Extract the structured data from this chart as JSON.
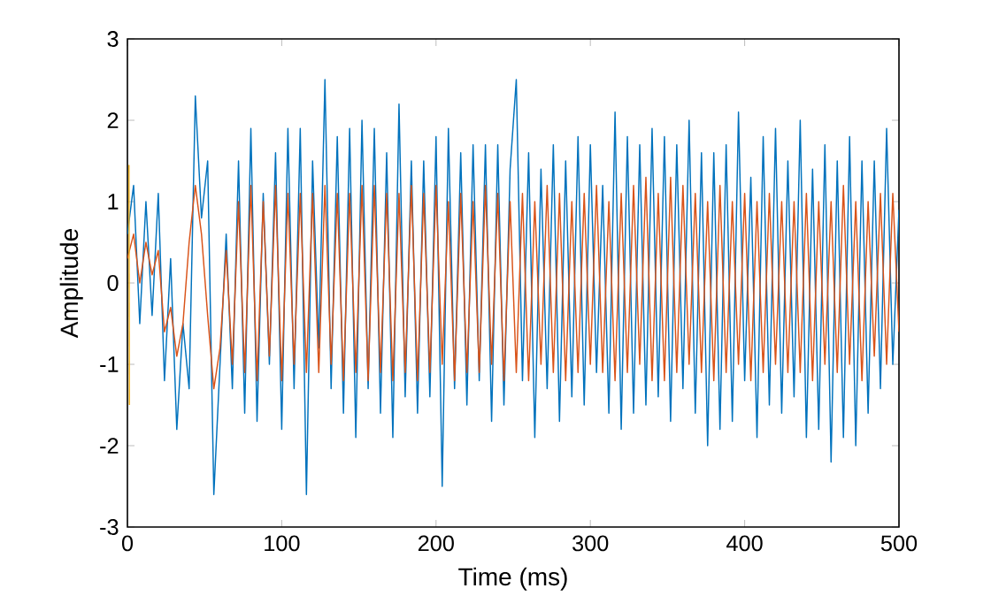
{
  "chart_data": {
    "type": "line",
    "xlabel": "Time (ms)",
    "ylabel": "Amplitude",
    "x": [
      0,
      4,
      8,
      12,
      16,
      20,
      24,
      28,
      32,
      36,
      40,
      44,
      48,
      52,
      56,
      60,
      64,
      68,
      72,
      76,
      80,
      84,
      88,
      92,
      96,
      100,
      104,
      108,
      112,
      116,
      120,
      124,
      128,
      132,
      136,
      140,
      144,
      148,
      152,
      156,
      160,
      164,
      168,
      172,
      176,
      180,
      184,
      188,
      192,
      196,
      200,
      204,
      208,
      212,
      216,
      220,
      224,
      228,
      232,
      236,
      240,
      244,
      248,
      252,
      256,
      260,
      264,
      268,
      272,
      276,
      280,
      284,
      288,
      292,
      296,
      300,
      304,
      308,
      312,
      316,
      320,
      324,
      328,
      332,
      336,
      340,
      344,
      348,
      352,
      356,
      360,
      364,
      368,
      372,
      376,
      380,
      384,
      388,
      392,
      396,
      400,
      404,
      408,
      412,
      416,
      420,
      424,
      428,
      432,
      436,
      440,
      444,
      448,
      452,
      456,
      460,
      464,
      468,
      472,
      476,
      480,
      484,
      488,
      492,
      496,
      500
    ],
    "xlim": [
      0,
      500
    ],
    "xticks": [
      0,
      100,
      200,
      300,
      400,
      500
    ],
    "ylim": [
      -3,
      3
    ],
    "yticks": [
      -3,
      -2,
      -1,
      0,
      1,
      2,
      3
    ],
    "series": [
      {
        "color": "#0072bd",
        "values": [
          0.6,
          1.2,
          -0.5,
          1.0,
          -0.4,
          1.1,
          -1.2,
          0.3,
          -1.8,
          -0.5,
          -1.3,
          2.3,
          0.8,
          1.5,
          -2.6,
          -1.0,
          0.6,
          -1.3,
          1.5,
          -1.6,
          1.9,
          -1.7,
          1.1,
          -1.0,
          1.6,
          -1.8,
          1.9,
          -1.3,
          1.9,
          -2.6,
          1.5,
          -0.8,
          2.5,
          -1.3,
          1.8,
          -1.6,
          1.9,
          -1.9,
          2.0,
          -1.3,
          1.9,
          -1.6,
          1.6,
          -1.9,
          2.2,
          -1.4,
          1.5,
          -1.6,
          1.5,
          -1.4,
          1.8,
          -2.5,
          1.9,
          -1.3,
          1.6,
          -1.5,
          1.7,
          -1.2,
          1.7,
          -1.7,
          1.7,
          -1.5,
          1.4,
          2.5,
          -1.2,
          1.6,
          -1.9,
          1.4,
          -1.3,
          1.7,
          -1.7,
          1.5,
          -1.4,
          1.8,
          -1.5,
          1.7,
          -1.1,
          1.2,
          -1.6,
          2.1,
          -1.8,
          1.8,
          -1.6,
          1.7,
          -1.5,
          1.9,
          -1.4,
          1.8,
          -1.7,
          1.7,
          -1.3,
          2.0,
          -1.6,
          1.6,
          -2.0,
          1.6,
          -1.8,
          1.7,
          -1.7,
          2.1,
          -1.2,
          1.3,
          -1.9,
          1.8,
          -1.5,
          1.9,
          -1.6,
          1.5,
          -1.4,
          2.0,
          -1.9,
          1.4,
          -1.8,
          1.7,
          -2.2,
          1.5,
          -1.9,
          1.8,
          -2.0,
          1.5,
          -1.6,
          1.5,
          -1.3,
          1.9,
          -1.0,
          0.9
        ]
      },
      {
        "color": "#d95319",
        "values": [
          0.3,
          0.6,
          0.0,
          0.5,
          0.1,
          0.4,
          -0.6,
          -0.3,
          -0.9,
          -0.5,
          0.5,
          1.2,
          0.6,
          -0.4,
          -1.3,
          -0.8,
          0.4,
          -1.0,
          1.0,
          -1.1,
          1.2,
          -1.2,
          1.0,
          -0.9,
          1.2,
          -1.2,
          1.1,
          -1.0,
          1.1,
          -1.1,
          1.1,
          -1.1,
          1.2,
          -1.0,
          1.1,
          -1.2,
          1.1,
          -1.1,
          1.2,
          -1.2,
          1.2,
          -1.1,
          1.1,
          -1.2,
          1.1,
          -1.1,
          1.2,
          -1.2,
          1.1,
          -1.1,
          1.2,
          -1.0,
          1.0,
          -1.2,
          1.1,
          -1.1,
          1.0,
          -1.1,
          1.2,
          -1.0,
          1.1,
          -1.2,
          1.0,
          -1.1,
          1.1,
          -1.2,
          1.0,
          -1.0,
          1.2,
          -1.1,
          1.1,
          -1.2,
          1.0,
          -1.1,
          1.1,
          -1.0,
          1.2,
          -1.1,
          1.0,
          -1.2,
          1.1,
          -1.1,
          1.2,
          -1.0,
          1.3,
          -1.2,
          1.1,
          -1.2,
          1.3,
          -1.1,
          1.2,
          -1.0,
          1.1,
          -1.1,
          1.0,
          -1.2,
          1.2,
          -1.1,
          1.0,
          -1.0,
          1.1,
          -1.2,
          1.0,
          -1.1,
          1.1,
          -1.0,
          1.0,
          -1.1,
          1.0,
          -1.1,
          1.1,
          -1.2,
          1.0,
          -1.0,
          1.0,
          -1.1,
          1.2,
          -1.0,
          1.0,
          -1.2,
          1.0,
          -0.9,
          1.1,
          -1.0,
          1.1,
          -0.6
        ]
      },
      {
        "color": "#edb120",
        "x": [
          1,
          1.3
        ],
        "values": [
          1.45,
          -1.5
        ]
      }
    ]
  }
}
